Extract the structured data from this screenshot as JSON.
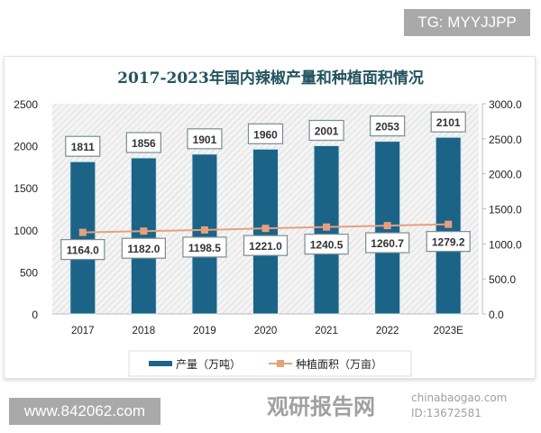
{
  "header_tag": "TG: MYYJJPP",
  "footer_url": "www.842062.com",
  "watermark": {
    "cn": "观研报告网",
    "en": "chinabaogao.com",
    "id": "ID:13672581"
  },
  "chart_data": {
    "type": "bar",
    "title": "2017-2023年国内辣椒产量和种植面积情况",
    "categories": [
      "2017",
      "2018",
      "2019",
      "2020",
      "2021",
      "2022",
      "2023E"
    ],
    "series": [
      {
        "name": "产量（万吨）",
        "type": "bar",
        "axis": "left",
        "color": "#1b6488",
        "values": [
          1811,
          1856,
          1901,
          1960,
          2001,
          2053,
          2101
        ]
      },
      {
        "name": "种植面积（万亩）",
        "type": "line",
        "axis": "right",
        "color": "#e6a07e",
        "values": [
          1164.0,
          1182.0,
          1198.5,
          1221.0,
          1240.5,
          1260.7,
          1279.2
        ]
      }
    ],
    "y_left": {
      "range": [
        0,
        2500
      ],
      "ticks": [
        "0",
        "500",
        "1000",
        "1500",
        "2000",
        "2500"
      ]
    },
    "y_right": {
      "range": [
        0,
        3000
      ],
      "ticks": [
        "0.0",
        "500.0",
        "1000.0",
        "1500.0",
        "2000.0",
        "2500.0",
        "3000.0"
      ]
    },
    "legend": "bottom",
    "grid": false
  }
}
